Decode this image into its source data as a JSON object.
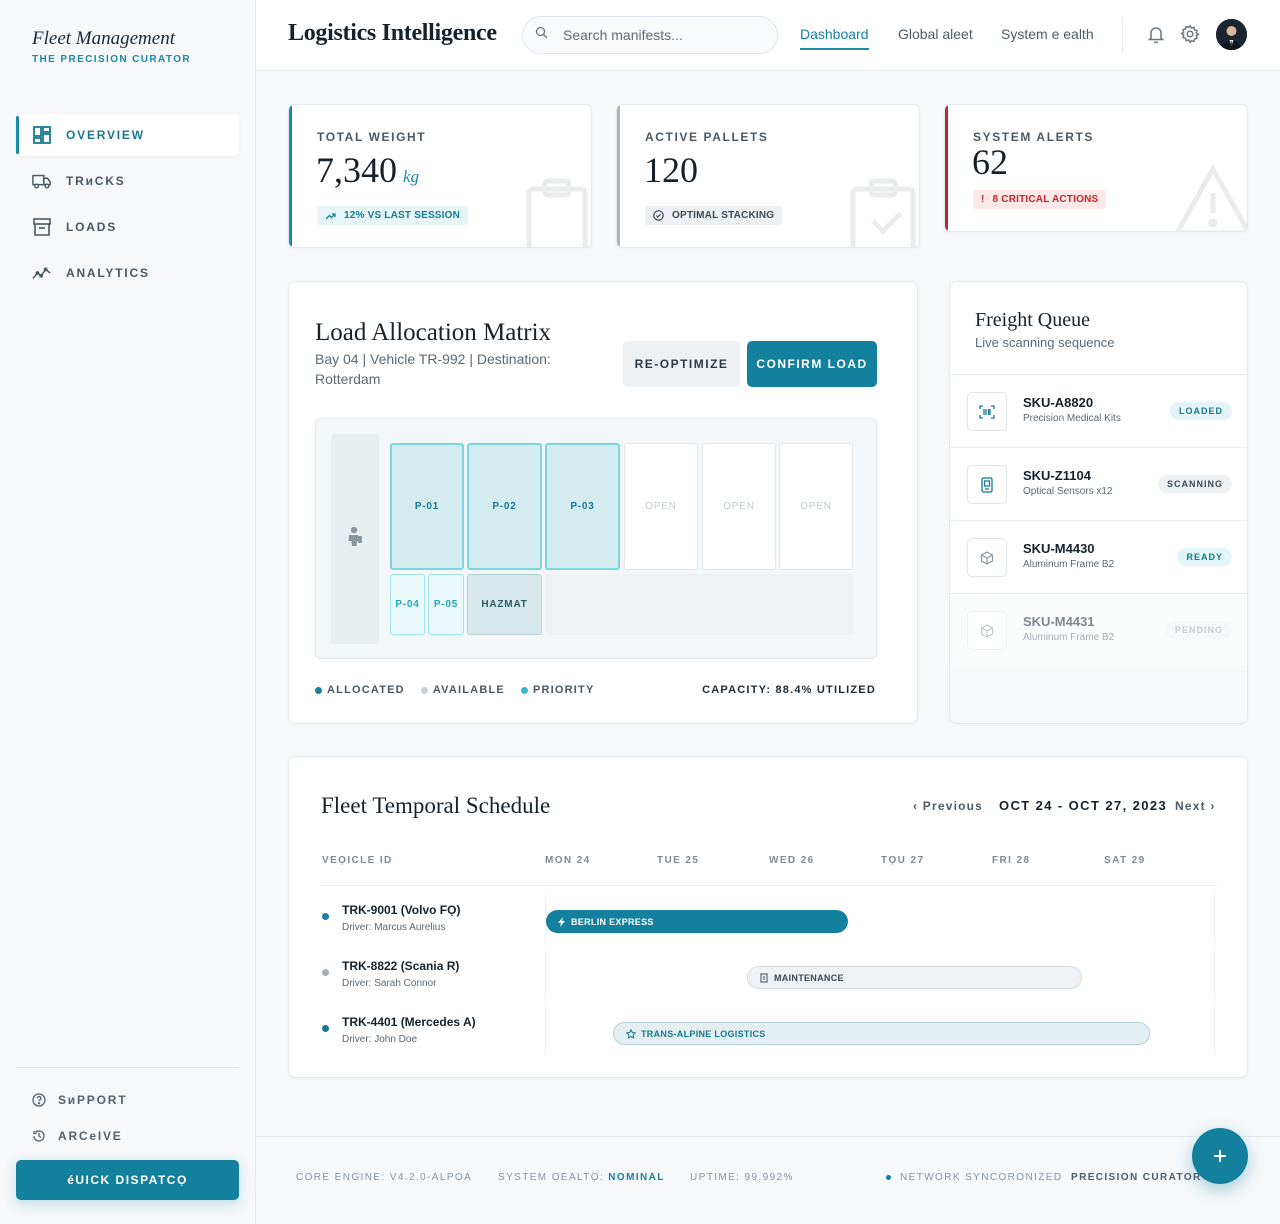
{
  "brand": {
    "title": "Fleet Management",
    "subtitle": "THE PRECISION CURATOR"
  },
  "sidebar": {
    "items": [
      {
        "label": "OVERVIEW",
        "icon": "grid-icon",
        "active": true
      },
      {
        "label": "TRиCKS",
        "icon": "truck-icon",
        "active": false
      },
      {
        "label": "LOADS",
        "icon": "archive-box-icon",
        "active": false
      },
      {
        "label": "ANALYTICS",
        "icon": "analytics-icon",
        "active": false
      }
    ],
    "support_label": "SиPPORT",
    "archive_label": "ARCeIVE",
    "quick_dispatch_label": "éUICK DISPATCỌ"
  },
  "header": {
    "title": "Logistics Intelligence",
    "search_placeholder": "Search manifests...",
    "tabs": [
      {
        "label": "Dashboard",
        "active": true
      },
      {
        "label": "Global aleet",
        "active": false
      },
      {
        "label": "System e ealth",
        "active": false
      }
    ]
  },
  "stats": {
    "total_weight": {
      "label": "TOTAL WEIGHT",
      "value": "7,340",
      "unit": "kg",
      "badge": "12% VS LAST SESSION"
    },
    "active_pallets": {
      "label": "ACTIVE PALLETS",
      "value": "120",
      "badge": "OPTIMAL STACKING"
    },
    "system_alerts": {
      "label": "SYSTEM ALERTS",
      "value": "62",
      "badge": "8 CRITICAL ACTIONS"
    }
  },
  "matrix": {
    "title": "Load Allocation Matrix",
    "subtitle": "Bay 04 | Vehicle TR-992 | Destination: Rotterdam",
    "reoptimize_label": "RE-OPTIMIZE",
    "confirm_label": "CONFIRM LOAD",
    "slots_top": [
      "P-01",
      "P-02",
      "P-03",
      "OPEN",
      "OPEN",
      "OPEN"
    ],
    "slots_bottom": [
      "P-04",
      "P-05",
      "HAZMAT"
    ],
    "legend": [
      "ALLOCATED",
      "AVAILABLE",
      "PRIORITY"
    ],
    "capacity": "CAPACITY: 88.4% UTILIZED"
  },
  "queue": {
    "title": "Freight Queue",
    "subtitle": "Live scanning sequence",
    "items": [
      {
        "sku": "SKU-A8820",
        "desc": "Precision Medical Kits",
        "status": "LOADED"
      },
      {
        "sku": "SKU-Z1104",
        "desc": "Optical Sensors x12",
        "status": "SCANNING"
      },
      {
        "sku": "SKU-M4430",
        "desc": "Aluminum Frame B2",
        "status": "READY"
      },
      {
        "sku": "SKU-M4431",
        "desc": "Aluminum Frame B2",
        "status": "PENDING"
      }
    ]
  },
  "schedule": {
    "title": "Fleet Temporal Schedule",
    "prev_label": "Previous",
    "next_label": "Next",
    "range": "OCT 24 - OCT 27, 2023",
    "vehicle_col": "VEỌICLE ID",
    "days": [
      "MON 24",
      "TUE 25",
      "WED 26",
      "TỌU 27",
      "FRI 28",
      "SAT 29"
    ],
    "rows": [
      {
        "vehicle": "TRK-9001 (Volvo FỌ)",
        "driver": "Driver: Marcus Aurelius",
        "task": "BERLIN EXPRESS"
      },
      {
        "vehicle": "TRK-8822 (Scania R)",
        "driver": "Driver: Sarah Connor",
        "task": "MAINTENANCE"
      },
      {
        "vehicle": "TRK-4401 (Mercedes A)",
        "driver": "Driver: John Doe",
        "task": "TRANS-ALPINE LOGISTICS"
      }
    ]
  },
  "footer": {
    "engine": "CORE ENGINE: V4.2.0-ALPỌA",
    "health_label": "SYSTEM ỌEALTỌ:",
    "health_value": "NOMINAL",
    "uptime": "UPTIME: 99.992%",
    "network": "NETWORK SYNCỌRONIZED",
    "brand": "PRECISION CURATOR"
  },
  "colors": {
    "accent": "#13809d",
    "alert": "#c0272d"
  }
}
